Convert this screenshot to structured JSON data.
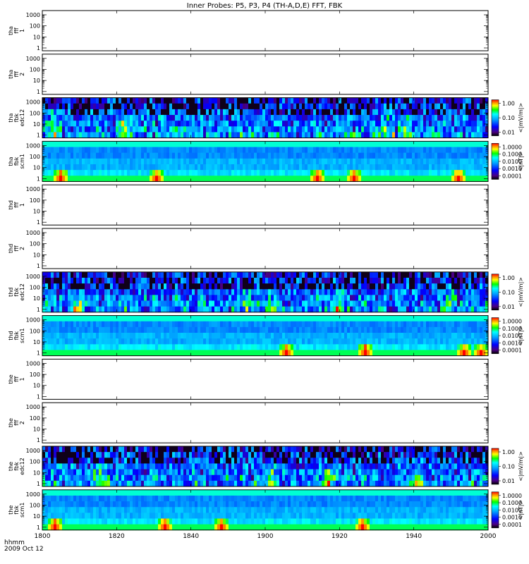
{
  "title": "Inner Probes: P5, P3, P4 (TH-A,D,E) FFT, FBK",
  "footer": {
    "time_label": "hhmm",
    "date_label": "2009 Oct 12"
  },
  "chart_data": {
    "type": "heatmap",
    "x_ticks": [
      "1800",
      "1820",
      "1840",
      "1900",
      "1920",
      "1940",
      "2000"
    ],
    "x_range": [
      "18:00",
      "20:00"
    ],
    "y_scale": "log",
    "y_ticks": [
      "1",
      "10",
      "100",
      "1000"
    ],
    "colorbar_e_ticks": [
      "1.00",
      "0.10",
      "0.01"
    ],
    "colorbar_e_label": "<|mV/m|>",
    "colorbar_b_ticks": [
      "1.0000",
      "0.1000",
      "0.0100",
      "0.0010",
      "0.0001"
    ],
    "colorbar_b_label": "<|nT|>",
    "panels": [
      {
        "label": [
          "tha",
          "fff",
          "1"
        ],
        "kind": "empty"
      },
      {
        "label": [
          "tha",
          "fff",
          "2"
        ],
        "kind": "empty"
      },
      {
        "label": [
          "tha",
          "fbk",
          "edc12"
        ],
        "kind": "e_spec",
        "seed": 11
      },
      {
        "label": [
          "tha",
          "fbk",
          "scm1"
        ],
        "kind": "b_spec",
        "seed": 12
      },
      {
        "label": [
          "thd",
          "fff",
          "1"
        ],
        "kind": "empty"
      },
      {
        "label": [
          "thd",
          "fff",
          "2"
        ],
        "kind": "empty"
      },
      {
        "label": [
          "thd",
          "fbk",
          "edc12"
        ],
        "kind": "e_spec",
        "seed": 21
      },
      {
        "label": [
          "thd",
          "fbk",
          "scm1"
        ],
        "kind": "b_spec",
        "seed": 22
      },
      {
        "label": [
          "the",
          "fff",
          "1"
        ],
        "kind": "empty"
      },
      {
        "label": [
          "the",
          "fff",
          "2"
        ],
        "kind": "empty"
      },
      {
        "label": [
          "the",
          "fbk",
          "edc12"
        ],
        "kind": "e_spec",
        "seed": 31
      },
      {
        "label": [
          "the",
          "fbk",
          "scm1"
        ],
        "kind": "b_spec",
        "seed": 32
      }
    ]
  }
}
